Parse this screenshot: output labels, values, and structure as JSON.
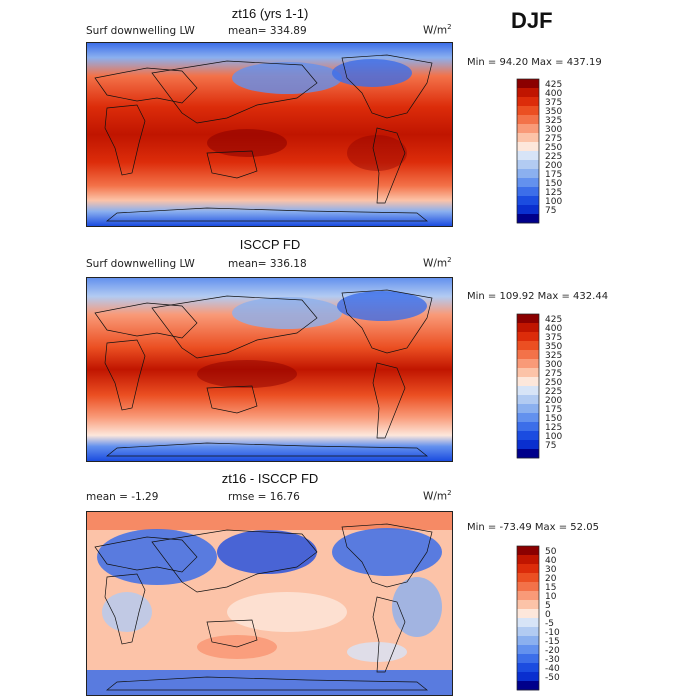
{
  "season": "DJF",
  "units_base": "W/m",
  "units_exp": "2",
  "panels": [
    {
      "title": "zt16 (yrs 1-1)",
      "field": "Surf downwelling LW",
      "stat_label": "mean=",
      "stat_value": "334.89",
      "minmax": "Min =  94.20 Max = 437.19"
    },
    {
      "title": "ISCCP FD",
      "field": "Surf downwelling LW",
      "stat_label": "mean=",
      "stat_value": "336.18",
      "minmax": "Min = 109.92 Max = 432.44"
    },
    {
      "title": "zt16 - ISCCP FD",
      "field": "mean =   -1.29",
      "stat_label": "rmse =",
      "stat_value": "16.76",
      "minmax": "Min = -73.49 Max =   52.05"
    }
  ],
  "chart_data": [
    {
      "type": "heatmap",
      "title": "zt16 (yrs 1-1)",
      "variable": "Surf downwelling LW",
      "units": "W/m2",
      "mean": 334.89,
      "min": 94.2,
      "max": 437.19,
      "colorbar_levels": [
        "425",
        "400",
        "375",
        "350",
        "325",
        "300",
        "275",
        "250",
        "225",
        "200",
        "175",
        "150",
        "125",
        "100",
        "75"
      ],
      "colorbar_colors": [
        "#8b0000",
        "#c01500",
        "#dc2c0a",
        "#eb4f22",
        "#f37249",
        "#f99a78",
        "#fcc3a8",
        "#fde7db",
        "#d7e4f7",
        "#b2cbf2",
        "#8bb0ef",
        "#6391ee",
        "#3c6ee9",
        "#1b4ce0",
        "#0a2fcf",
        "#00008b"
      ]
    },
    {
      "type": "heatmap",
      "title": "ISCCP FD",
      "variable": "Surf downwelling LW",
      "units": "W/m2",
      "mean": 336.18,
      "min": 109.92,
      "max": 432.44,
      "colorbar_levels": [
        "425",
        "400",
        "375",
        "350",
        "325",
        "300",
        "275",
        "250",
        "225",
        "200",
        "175",
        "150",
        "125",
        "100",
        "75"
      ],
      "colorbar_colors": [
        "#8b0000",
        "#c01500",
        "#dc2c0a",
        "#eb4f22",
        "#f37249",
        "#f99a78",
        "#fcc3a8",
        "#fde7db",
        "#d7e4f7",
        "#b2cbf2",
        "#8bb0ef",
        "#6391ee",
        "#3c6ee9",
        "#1b4ce0",
        "#0a2fcf",
        "#00008b"
      ]
    },
    {
      "type": "heatmap",
      "title": "zt16 - ISCCP FD",
      "units": "W/m2",
      "mean": -1.29,
      "rmse": 16.76,
      "min": -73.49,
      "max": 52.05,
      "colorbar_levels": [
        "50",
        "40",
        "30",
        "20",
        "15",
        "10",
        "5",
        "0",
        "-5",
        "-10",
        "-15",
        "-20",
        "-30",
        "-40",
        "-50"
      ],
      "colorbar_colors": [
        "#8b0000",
        "#c01500",
        "#dc2c0a",
        "#eb4f22",
        "#f37249",
        "#f99a78",
        "#fcc3a8",
        "#fde7db",
        "#d7e4f7",
        "#b2cbf2",
        "#8bb0ef",
        "#6391ee",
        "#3c6ee9",
        "#1b4ce0",
        "#0a2fcf",
        "#00008b"
      ]
    }
  ]
}
